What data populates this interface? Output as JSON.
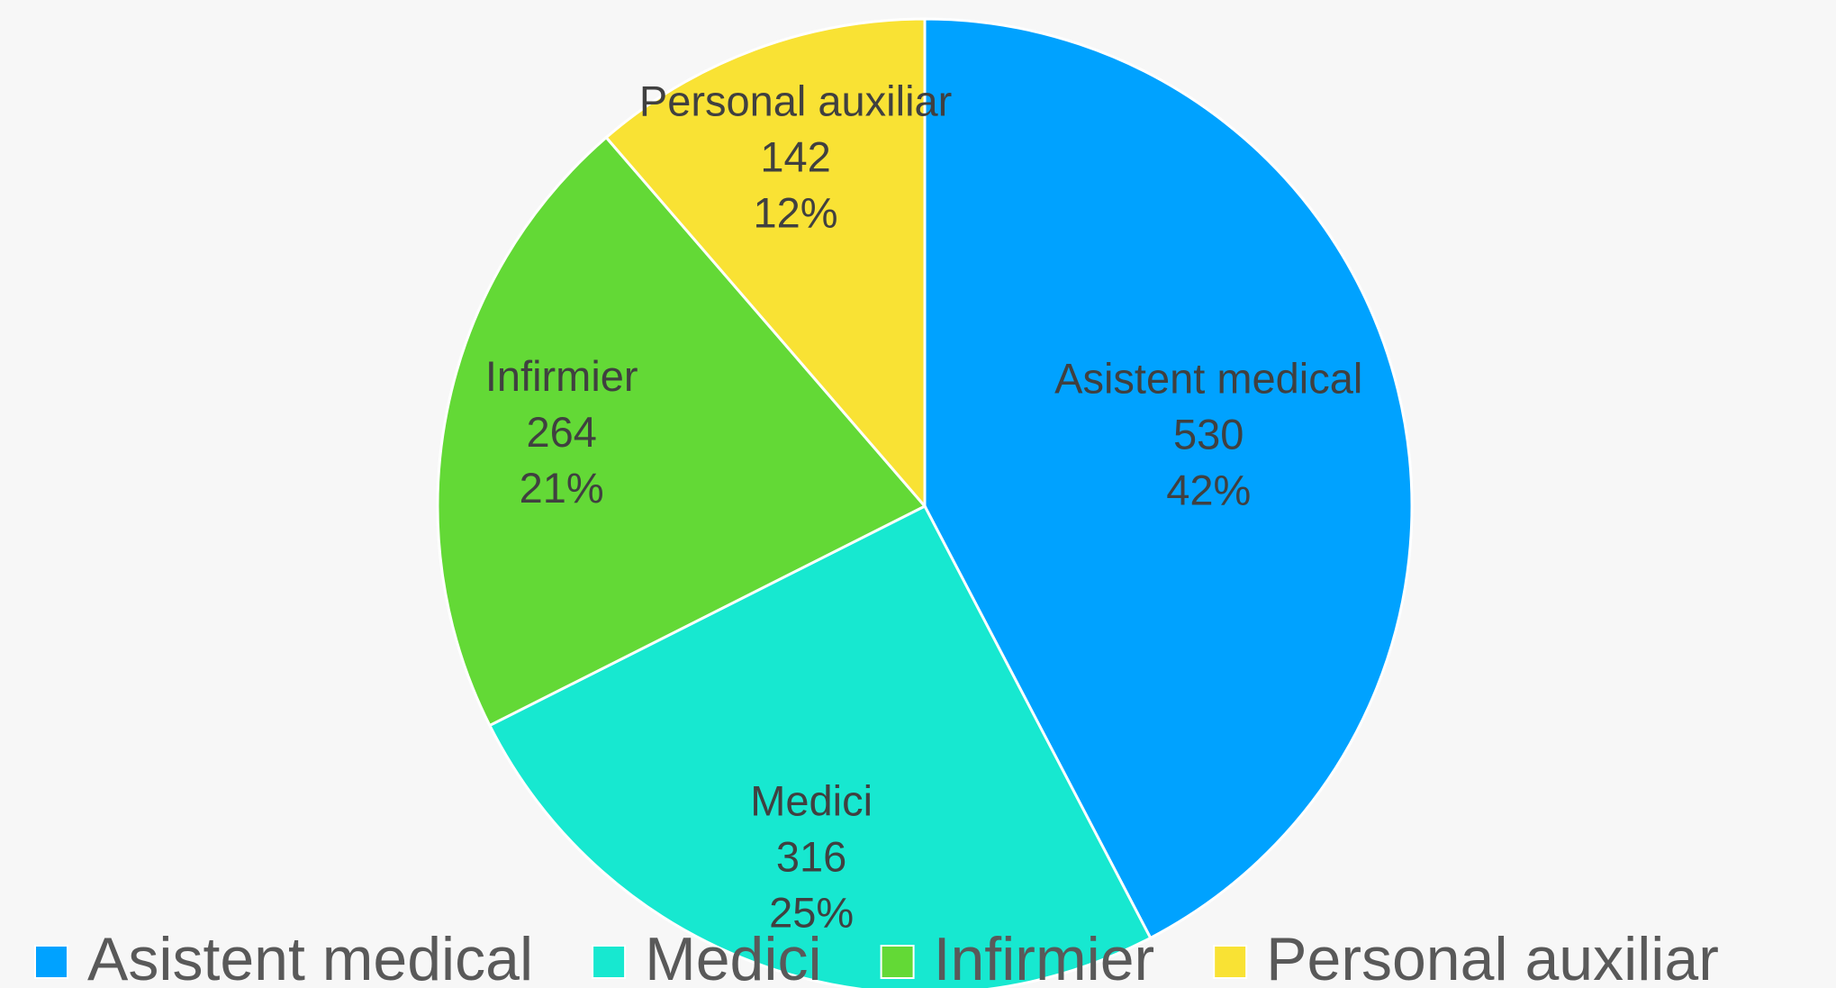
{
  "chart_data": {
    "type": "pie",
    "categories": [
      "Asistent medical",
      "Medici",
      "Infirmier",
      "Personal auxiliar"
    ],
    "values": [
      530,
      316,
      264,
      142
    ],
    "percent_labels": [
      "42%",
      "25%",
      "21%",
      "12%"
    ],
    "colors": [
      "#00a2ff",
      "#17e8d0",
      "#63d936",
      "#f9e234"
    ],
    "legend": "bottom"
  }
}
